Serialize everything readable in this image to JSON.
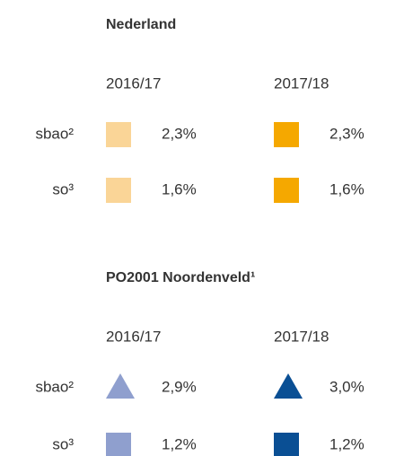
{
  "sections": [
    {
      "title": "Nederland",
      "columns": [
        "2016/17",
        "2017/18"
      ],
      "rows": [
        {
          "label": "sbao²",
          "values": [
            "2,3%",
            "2,3%"
          ]
        },
        {
          "label": "so³",
          "values": [
            "1,6%",
            "1,6%"
          ]
        }
      ]
    },
    {
      "title": "PO2001 Noordenveld¹",
      "columns": [
        "2016/17",
        "2017/18"
      ],
      "rows": [
        {
          "label": "sbao²",
          "values": [
            "2,9%",
            "3,0%"
          ]
        },
        {
          "label": "so³",
          "values": [
            "1,2%",
            "1,2%"
          ]
        }
      ]
    }
  ]
}
